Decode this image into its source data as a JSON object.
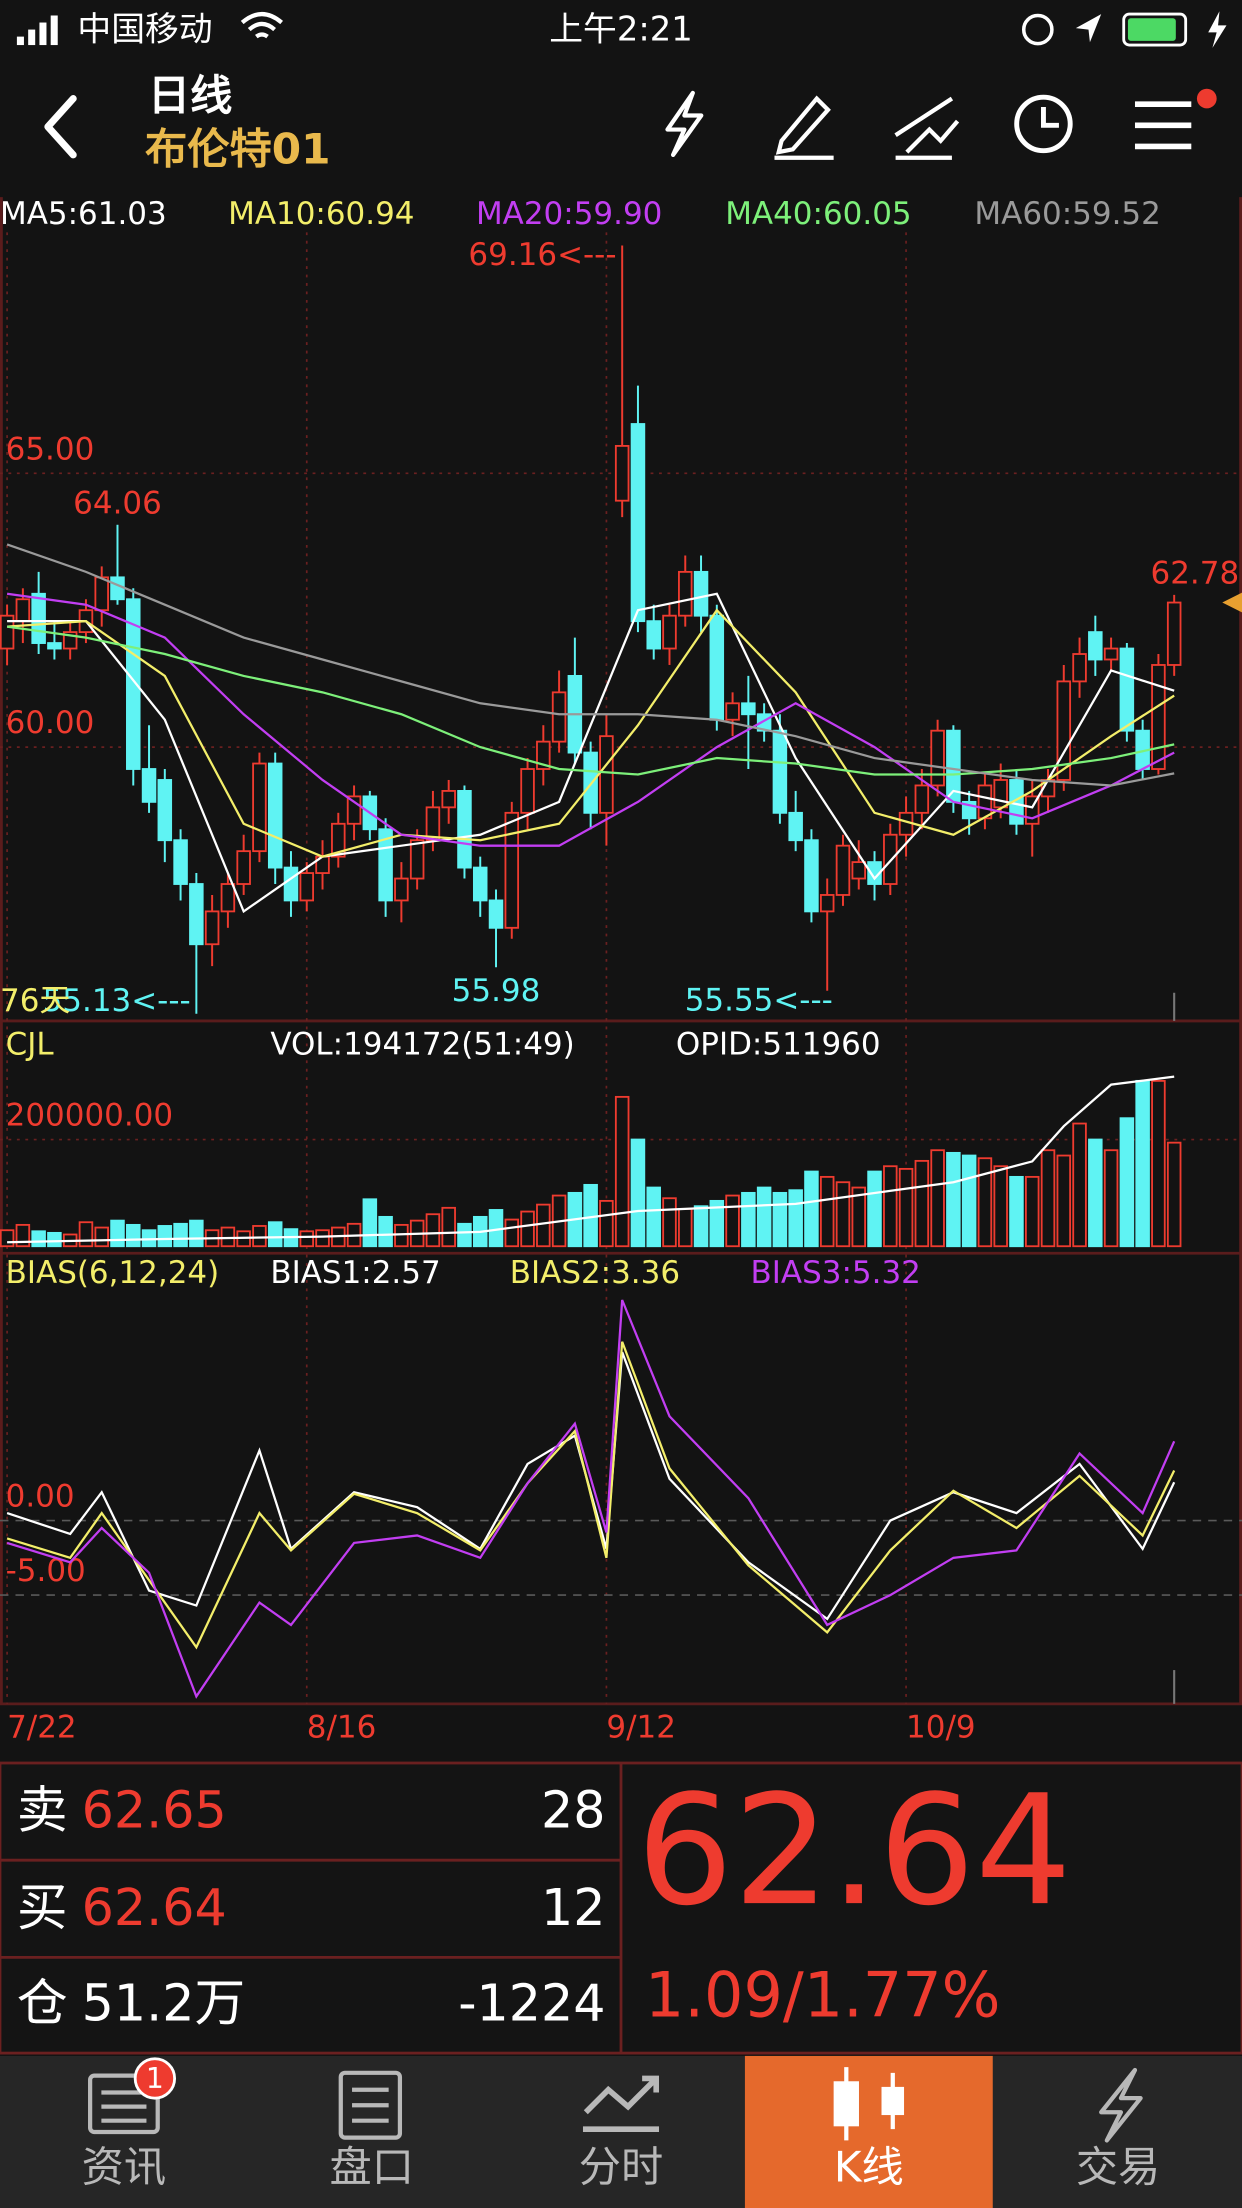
{
  "status_bar": {
    "carrier": "中国移动",
    "time": "上午2:21"
  },
  "header": {
    "title": "日线",
    "subtitle": "布伦特01"
  },
  "chart_data": [
    {
      "type": "candlestick",
      "up_color": "#ee3b2f",
      "down_color": "#5ff3f3",
      "grid": true,
      "xlim": [
        -0.45,
        78.3
      ],
      "ylim": [
        55,
        69.4
      ],
      "xticks": [
        {
          "value": 0,
          "label": "7/22"
        },
        {
          "value": 19,
          "label": "8/16"
        },
        {
          "value": 38,
          "label": "9/12"
        },
        {
          "value": 57,
          "label": "10/9"
        }
      ],
      "yticks": [
        {
          "value": 60,
          "label": "60.00"
        },
        {
          "value": 65,
          "label": "65.00"
        }
      ],
      "period_label": "76天",
      "ohlc": [
        [
          61.8,
          62.6,
          61.5,
          62.4
        ],
        [
          62.3,
          62.9,
          61.9,
          62.7
        ],
        [
          62.8,
          63.2,
          61.7,
          61.9
        ],
        [
          61.9,
          62.3,
          61.6,
          61.8
        ],
        [
          61.8,
          62.3,
          61.6,
          62.1
        ],
        [
          62.1,
          62.7,
          61.9,
          62.5
        ],
        [
          62.5,
          63.3,
          62.2,
          63.1
        ],
        [
          63.1,
          64.06,
          62.6,
          62.7
        ],
        [
          62.7,
          62.9,
          59.3,
          59.6
        ],
        [
          59.6,
          60.4,
          58.8,
          59.0
        ],
        [
          59.4,
          59.6,
          57.9,
          58.3
        ],
        [
          58.3,
          58.5,
          57.2,
          57.5
        ],
        [
          57.5,
          57.7,
          55.13,
          56.4
        ],
        [
          56.4,
          57.3,
          56.0,
          57.0
        ],
        [
          57.0,
          57.7,
          56.7,
          57.5
        ],
        [
          57.5,
          58.4,
          57.3,
          58.1
        ],
        [
          58.1,
          59.9,
          57.9,
          59.7
        ],
        [
          59.7,
          59.9,
          57.5,
          57.8
        ],
        [
          57.8,
          58.1,
          56.9,
          57.2
        ],
        [
          57.2,
          57.9,
          57.0,
          57.7
        ],
        [
          57.7,
          58.3,
          57.4,
          58.0
        ],
        [
          58.0,
          58.8,
          57.8,
          58.6
        ],
        [
          58.6,
          59.3,
          58.3,
          59.1
        ],
        [
          59.1,
          59.2,
          58.3,
          58.5
        ],
        [
          58.5,
          58.7,
          56.9,
          57.2
        ],
        [
          57.2,
          57.9,
          56.8,
          57.6
        ],
        [
          57.6,
          58.5,
          57.4,
          58.3
        ],
        [
          58.3,
          59.2,
          58.1,
          58.9
        ],
        [
          58.9,
          59.4,
          58.6,
          59.2
        ],
        [
          59.2,
          59.3,
          57.6,
          57.8
        ],
        [
          57.8,
          58.0,
          56.9,
          57.2
        ],
        [
          57.2,
          57.4,
          55.98,
          56.7
        ],
        [
          56.7,
          59.0,
          56.5,
          58.8
        ],
        [
          58.8,
          59.8,
          58.5,
          59.6
        ],
        [
          59.6,
          60.4,
          59.3,
          60.1
        ],
        [
          60.1,
          61.4,
          59.9,
          61.0
        ],
        [
          61.3,
          62.0,
          59.7,
          59.9
        ],
        [
          59.9,
          60.1,
          58.5,
          58.8
        ],
        [
          58.8,
          60.6,
          58.2,
          60.2
        ],
        [
          64.5,
          69.16,
          64.2,
          65.5
        ],
        [
          65.9,
          66.6,
          62.1,
          62.3
        ],
        [
          62.3,
          62.6,
          61.6,
          61.8
        ],
        [
          61.8,
          62.6,
          61.5,
          62.4
        ],
        [
          62.4,
          63.5,
          62.2,
          63.2
        ],
        [
          63.2,
          63.5,
          62.1,
          62.4
        ],
        [
          62.4,
          62.6,
          60.3,
          60.5
        ],
        [
          60.5,
          61.0,
          60.2,
          60.8
        ],
        [
          60.8,
          61.3,
          59.6,
          60.6
        ],
        [
          60.6,
          60.8,
          60.1,
          60.3
        ],
        [
          60.3,
          60.6,
          58.6,
          58.8
        ],
        [
          58.8,
          59.2,
          58.1,
          58.3
        ],
        [
          58.3,
          58.5,
          56.8,
          57.0
        ],
        [
          57.0,
          57.6,
          55.55,
          57.3
        ],
        [
          57.3,
          58.4,
          57.1,
          58.2
        ],
        [
          57.6,
          58.3,
          57.4,
          57.9
        ],
        [
          57.9,
          58.1,
          57.2,
          57.5
        ],
        [
          57.5,
          58.6,
          57.3,
          58.4
        ],
        [
          58.4,
          59.1,
          58.0,
          58.8
        ],
        [
          58.8,
          59.6,
          58.5,
          59.3
        ],
        [
          59.3,
          60.5,
          59.1,
          60.3
        ],
        [
          60.3,
          60.4,
          58.8,
          59.0
        ],
        [
          59.0,
          59.2,
          58.4,
          58.7
        ],
        [
          58.7,
          59.5,
          58.5,
          59.3
        ],
        [
          58.9,
          59.7,
          58.7,
          59.4
        ],
        [
          59.4,
          59.6,
          58.4,
          58.6
        ],
        [
          58.6,
          59.4,
          58.0,
          59.1
        ],
        [
          59.1,
          59.6,
          58.8,
          59.4
        ],
        [
          59.4,
          61.5,
          59.2,
          61.2
        ],
        [
          61.2,
          62.0,
          60.9,
          61.7
        ],
        [
          62.1,
          62.4,
          61.3,
          61.6
        ],
        [
          61.6,
          62.0,
          61.4,
          61.8
        ],
        [
          61.8,
          61.9,
          60.1,
          60.3
        ],
        [
          60.3,
          60.5,
          59.4,
          59.6
        ],
        [
          59.6,
          61.7,
          59.5,
          61.5
        ],
        [
          61.5,
          62.78,
          61.3,
          62.64
        ]
      ],
      "series": [
        {
          "name": "MA5:61.03",
          "color": "#ffffff",
          "x": [
            0,
            5,
            10,
            15,
            20,
            25,
            30,
            35,
            40,
            45,
            50,
            55,
            60,
            65,
            70,
            74
          ],
          "values": [
            62.3,
            62.3,
            60.5,
            57.0,
            58.0,
            58.2,
            58.4,
            59.0,
            62.5,
            62.8,
            59.8,
            57.6,
            59.2,
            58.9,
            61.4,
            61.03
          ]
        },
        {
          "name": "MA10:60.94",
          "color": "#f3ee6a",
          "x": [
            0,
            5,
            10,
            15,
            20,
            25,
            30,
            35,
            40,
            45,
            50,
            55,
            60,
            65,
            70,
            74
          ],
          "values": [
            62.2,
            62.3,
            61.3,
            58.6,
            58.0,
            58.4,
            58.3,
            58.6,
            60.4,
            62.5,
            61.0,
            58.8,
            58.4,
            59.2,
            60.2,
            60.94
          ]
        },
        {
          "name": "MA20:59.90",
          "color": "#c23ef2",
          "x": [
            0,
            5,
            10,
            15,
            20,
            25,
            30,
            35,
            40,
            45,
            50,
            55,
            60,
            65,
            70,
            74
          ],
          "values": [
            62.8,
            62.6,
            62.0,
            60.6,
            59.4,
            58.4,
            58.2,
            58.2,
            59.0,
            60.0,
            60.8,
            60.0,
            59.0,
            58.7,
            59.3,
            59.9
          ]
        },
        {
          "name": "MA40:60.05",
          "color": "#7df07a",
          "x": [
            0,
            5,
            10,
            15,
            20,
            25,
            30,
            35,
            40,
            45,
            50,
            55,
            60,
            65,
            70,
            74
          ],
          "values": [
            62.2,
            62.0,
            61.7,
            61.3,
            61.0,
            60.6,
            60.0,
            59.6,
            59.5,
            59.8,
            59.7,
            59.5,
            59.5,
            59.6,
            59.8,
            60.05
          ]
        },
        {
          "name": "MA60:59.52",
          "color": "#9a9a9a",
          "x": [
            0,
            5,
            10,
            15,
            20,
            25,
            30,
            35,
            40,
            45,
            50,
            55,
            60,
            65,
            70,
            74
          ],
          "values": [
            63.7,
            63.2,
            62.6,
            62.0,
            61.6,
            61.2,
            60.8,
            60.6,
            60.6,
            60.5,
            60.2,
            59.8,
            59.6,
            59.4,
            59.3,
            59.52
          ]
        }
      ],
      "annotations": [
        {
          "label": "69.16<---",
          "x": 39,
          "value": 69.16,
          "color": "#ee3b2f"
        },
        {
          "label": "64.06",
          "x": 7,
          "value": 64.06,
          "color": "#ee3b2f"
        },
        {
          "label": "55.98",
          "x": 31,
          "value": 55.98,
          "color": "#5ff3f3"
        },
        {
          "label": "55.55<---",
          "x": 52,
          "value": 55.55,
          "color": "#5ff3f3"
        },
        {
          "label": "55.13<---",
          "x": 12,
          "value": 55.13,
          "color": "#5ff3f3"
        },
        {
          "label": "62.78",
          "x": 74,
          "value": 62.78,
          "color": "#ee3b2f"
        }
      ]
    },
    {
      "type": "bar",
      "title": "CJL",
      "title_color": "#f3ee6a",
      "grid": true,
      "xlim": [
        -0.45,
        78.3
      ],
      "ylim": [
        0,
        330000
      ],
      "y2lim": [
        300000,
        520000
      ],
      "yticks": [
        {
          "value": 200000,
          "label": "200000.00"
        }
      ],
      "series": [
        {
          "name": "VOL:194172(51:49)",
          "color": "#ffffff",
          "values": [
            30000,
            40000,
            28000,
            25000,
            22000,
            45000,
            35000,
            48000,
            40000,
            30000,
            38000,
            42000,
            48000,
            30000,
            35000,
            28000,
            38000,
            45000,
            32000,
            28000,
            30000,
            35000,
            42000,
            88000,
            55000,
            40000,
            48000,
            60000,
            72000,
            42000,
            55000,
            68000,
            50000,
            65000,
            78000,
            95000,
            100000,
            115000,
            85000,
            280000,
            200000,
            110000,
            90000,
            70000,
            75000,
            85000,
            95000,
            100000,
            110000,
            100000,
            105000,
            140000,
            130000,
            120000,
            110000,
            140000,
            150000,
            145000,
            160000,
            180000,
            175000,
            170000,
            165000,
            150000,
            130000,
            130000,
            180000,
            170000,
            230000,
            200000,
            180000,
            240000,
            310000,
            310000,
            194172
          ]
        },
        {
          "name": "OPID:511960",
          "color": "#ffffff",
          "axis": "y2",
          "x": [
            0,
            10,
            20,
            30,
            40,
            50,
            60,
            65,
            67,
            70,
            74
          ],
          "values": [
            305000,
            309000,
            312000,
            318000,
            344000,
            353000,
            380000,
            406000,
            450000,
            502000,
            511960
          ]
        }
      ]
    },
    {
      "type": "line",
      "title": "BIAS(6,12,24)",
      "title_color": "#f3ee6a",
      "grid": true,
      "xlim": [
        -0.45,
        78.3
      ],
      "ylim": [
        -12.3,
        15.1
      ],
      "yticks": [
        {
          "value": 0,
          "label": "0.00"
        },
        {
          "value": -5,
          "label": "-5.00"
        }
      ],
      "series": [
        {
          "name": "BIAS1:2.57",
          "color": "#ffffff",
          "x": [
            0,
            4,
            6,
            9,
            12,
            16,
            18,
            22,
            26,
            30,
            33,
            36,
            38,
            39,
            42,
            47,
            52,
            56,
            60,
            64,
            68,
            72,
            74
          ],
          "values": [
            0.5,
            -0.9,
            1.9,
            -4.7,
            -5.7,
            4.7,
            -1.9,
            1.9,
            0.9,
            -1.9,
            3.8,
            5.7,
            -1.9,
            11.3,
            2.8,
            -2.8,
            -6.6,
            0,
            1.9,
            0.5,
            3.8,
            -1.9,
            2.57
          ]
        },
        {
          "name": "BIAS2:3.36",
          "color": "#f3ee6a",
          "x": [
            0,
            4,
            6,
            9,
            12,
            16,
            18,
            22,
            26,
            30,
            33,
            36,
            38,
            39,
            42,
            47,
            52,
            56,
            60,
            64,
            68,
            72,
            74
          ],
          "values": [
            -1.2,
            -2.5,
            0.5,
            -4.0,
            -8.5,
            0.5,
            -2.0,
            1.8,
            0.5,
            -2.0,
            2.5,
            6.0,
            -2.5,
            12.0,
            3.5,
            -3.0,
            -7.5,
            -2.0,
            2.0,
            -0.5,
            3.0,
            -1.0,
            3.36
          ]
        },
        {
          "name": "BIAS3:5.32",
          "color": "#c23ef2",
          "x": [
            0,
            4,
            6,
            9,
            12,
            16,
            18,
            22,
            26,
            30,
            33,
            36,
            38,
            39,
            42,
            47,
            52,
            56,
            60,
            64,
            68,
            72,
            74
          ],
          "values": [
            -1.5,
            -2.8,
            -0.5,
            -3.5,
            -11.8,
            -5.5,
            -7.0,
            -1.5,
            -1.0,
            -2.5,
            2.5,
            6.5,
            -0.8,
            14.8,
            7.0,
            1.5,
            -7.0,
            -5.0,
            -2.5,
            -2.0,
            4.5,
            0.5,
            5.32
          ]
        }
      ]
    }
  ],
  "quote": {
    "rows": [
      {
        "label": "卖",
        "price": "62.65",
        "qty": "28"
      },
      {
        "label": "买",
        "price": "62.64",
        "qty": "12"
      },
      {
        "label": "仓",
        "price": "51.2万",
        "qty": "-1224"
      }
    ],
    "last": "62.64",
    "change": "1.09/1.77%"
  },
  "tabs": [
    {
      "label": "资讯",
      "badge": "1"
    },
    {
      "label": "盘口"
    },
    {
      "label": "分时"
    },
    {
      "label": "K线"
    },
    {
      "label": "交易"
    }
  ]
}
